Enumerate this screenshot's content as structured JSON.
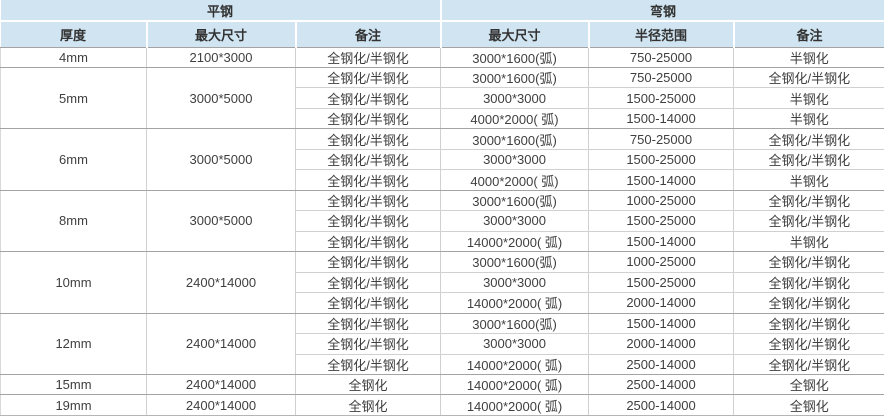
{
  "table": {
    "sections": [
      {
        "label": "平钢"
      },
      {
        "label": "弯钢"
      }
    ],
    "columns": [
      "厚度",
      "最大尺寸",
      "备注",
      "最大尺寸",
      "半径范围",
      "备注"
    ],
    "groups": [
      {
        "thickness": "4mm",
        "flat_max_size": "2100*3000",
        "rows": [
          {
            "flat_note": "全钢化/半钢化",
            "bend_max_size": "3000*1600(弧)",
            "radius_range": "750-25000",
            "bend_note": "半钢化"
          }
        ]
      },
      {
        "thickness": "5mm",
        "flat_max_size": "3000*5000",
        "rows": [
          {
            "flat_note": "全钢化/半钢化",
            "bend_max_size": "3000*1600(弧)",
            "radius_range": "750-25000",
            "bend_note": "全钢化/半钢化"
          },
          {
            "flat_note": "全钢化/半钢化",
            "bend_max_size": "3000*3000",
            "radius_range": "1500-25000",
            "bend_note": "半钢化"
          },
          {
            "flat_note": "全钢化/半钢化",
            "bend_max_size": "4000*2000( 弧)",
            "radius_range": "1500-14000",
            "bend_note": "半钢化"
          }
        ]
      },
      {
        "thickness": "6mm",
        "flat_max_size": "3000*5000",
        "rows": [
          {
            "flat_note": "全钢化/半钢化",
            "bend_max_size": "3000*1600(弧)",
            "radius_range": "750-25000",
            "bend_note": "全钢化/半钢化"
          },
          {
            "flat_note": "全钢化/半钢化",
            "bend_max_size": "3000*3000",
            "radius_range": "1500-25000",
            "bend_note": "全钢化/半钢化"
          },
          {
            "flat_note": "全钢化/半钢化",
            "bend_max_size": "4000*2000( 弧)",
            "radius_range": "1500-14000",
            "bend_note": "半钢化"
          }
        ]
      },
      {
        "thickness": "8mm",
        "flat_max_size": "3000*5000",
        "rows": [
          {
            "flat_note": "全钢化/半钢化",
            "bend_max_size": "3000*1600(弧)",
            "radius_range": "1000-25000",
            "bend_note": "全钢化/半钢化"
          },
          {
            "flat_note": "全钢化/半钢化",
            "bend_max_size": "3000*3000",
            "radius_range": "1500-25000",
            "bend_note": "全钢化/半钢化"
          },
          {
            "flat_note": "全钢化/半钢化",
            "bend_max_size": "14000*2000( 弧)",
            "radius_range": "1500-14000",
            "bend_note": "半钢化"
          }
        ]
      },
      {
        "thickness": "10mm",
        "flat_max_size": "2400*14000",
        "rows": [
          {
            "flat_note": "全钢化/半钢化",
            "bend_max_size": "3000*1600(弧)",
            "radius_range": "1000-25000",
            "bend_note": "全钢化/半钢化"
          },
          {
            "flat_note": "全钢化/半钢化",
            "bend_max_size": "3000*3000",
            "radius_range": "1500-25000",
            "bend_note": "全钢化/半钢化"
          },
          {
            "flat_note": "全钢化/半钢化",
            "bend_max_size": "14000*2000( 弧)",
            "radius_range": "2000-14000",
            "bend_note": "全钢化/半钢化"
          }
        ]
      },
      {
        "thickness": "12mm",
        "flat_max_size": "2400*14000",
        "rows": [
          {
            "flat_note": "全钢化/半钢化",
            "bend_max_size": "3000*1600(弧)",
            "radius_range": "1500-14000",
            "bend_note": "全钢化/半钢化"
          },
          {
            "flat_note": "全钢化/半钢化",
            "bend_max_size": "3000*3000",
            "radius_range": "2000-14000",
            "bend_note": "全钢化/半钢化"
          },
          {
            "flat_note": "全钢化/半钢化",
            "bend_max_size": "14000*2000( 弧)",
            "radius_range": "2500-14000",
            "bend_note": "全钢化/半钢化"
          }
        ]
      },
      {
        "thickness": "15mm",
        "flat_max_size": "2400*14000",
        "rows": [
          {
            "flat_note": "全钢化",
            "bend_max_size": "14000*2000( 弧)",
            "radius_range": "2500-14000",
            "bend_note": "全钢化"
          }
        ]
      },
      {
        "thickness": "19mm",
        "flat_max_size": "2400*14000",
        "rows": [
          {
            "flat_note": "全钢化",
            "bend_max_size": "14000*2000( 弧)",
            "radius_range": "2500-14000",
            "bend_note": "全钢化"
          }
        ]
      }
    ]
  },
  "colors": {
    "header_background": "#d0e5f1",
    "header_grid": "#ffffff",
    "inner_grid": "#d0d0d0",
    "group_grid": "#a3a3a3",
    "text": "#3f3f3f"
  }
}
